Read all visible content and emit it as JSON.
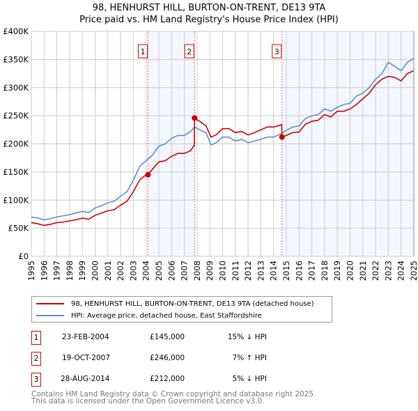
{
  "chart_data": {
    "type": "line",
    "title": "98, HENHURST HILL, BURTON-ON-TRENT, DE13 9TA",
    "subtitle": "Price paid vs. HM Land Registry's House Price Index (HPI)",
    "xlim": [
      1995,
      2025
    ],
    "ylim": [
      0,
      400000
    ],
    "x_ticks": [
      "1995",
      "1996",
      "1997",
      "1998",
      "1999",
      "2000",
      "2001",
      "2002",
      "2003",
      "2004",
      "2005",
      "2006",
      "2007",
      "2008",
      "2009",
      "2010",
      "2011",
      "2012",
      "2013",
      "2014",
      "2015",
      "2016",
      "2017",
      "2018",
      "2019",
      "2020",
      "2021",
      "2022",
      "2023",
      "2024",
      "2025"
    ],
    "y_ticks": [
      {
        "v": 0,
        "label": "£0"
      },
      {
        "v": 50000,
        "label": "£50K"
      },
      {
        "v": 100000,
        "label": "£100K"
      },
      {
        "v": 150000,
        "label": "£150K"
      },
      {
        "v": 200000,
        "label": "£200K"
      },
      {
        "v": 250000,
        "label": "£250K"
      },
      {
        "v": 300000,
        "label": "£300K"
      },
      {
        "v": 350000,
        "label": "£350K"
      },
      {
        "v": 400000,
        "label": "£400K"
      }
    ],
    "grid": true,
    "shaded_ranges": [
      [
        2004.15,
        2007.8
      ],
      [
        2014.66,
        2025
      ]
    ],
    "series": [
      {
        "name": "98, HENHURST HILL, BURTON-ON-TRENT, DE13 9TA (detached house)",
        "color": "#cc0000",
        "points": [
          [
            1995,
            60
          ],
          [
            1995.5,
            58
          ],
          [
            1996,
            55
          ],
          [
            1996.5,
            57
          ],
          [
            1997,
            60
          ],
          [
            1997.5,
            61
          ],
          [
            1998,
            63
          ],
          [
            1998.5,
            65
          ],
          [
            1999,
            68
          ],
          [
            1999.5,
            66
          ],
          [
            2000,
            73
          ],
          [
            2000.5,
            77
          ],
          [
            2001,
            81
          ],
          [
            2001.5,
            83
          ],
          [
            2002,
            91
          ],
          [
            2002.5,
            98
          ],
          [
            2003,
            115
          ],
          [
            2003.5,
            136
          ],
          [
            2004,
            145
          ],
          [
            2004.15,
            145
          ],
          [
            2004.5,
            155
          ],
          [
            2005,
            168
          ],
          [
            2005.5,
            170
          ],
          [
            2006,
            178
          ],
          [
            2006.5,
            183
          ],
          [
            2007,
            183
          ],
          [
            2007.5,
            188
          ],
          [
            2007.79,
            198
          ],
          [
            2007.8,
            246
          ],
          [
            2008.2,
            240
          ],
          [
            2008.7,
            232
          ],
          [
            2009.1,
            212
          ],
          [
            2009.5,
            216
          ],
          [
            2010,
            227
          ],
          [
            2010.5,
            227
          ],
          [
            2011,
            220
          ],
          [
            2011.5,
            222
          ],
          [
            2012,
            216
          ],
          [
            2012.5,
            220
          ],
          [
            2013,
            225
          ],
          [
            2013.5,
            230
          ],
          [
            2014,
            230
          ],
          [
            2014.64,
            234
          ],
          [
            2014.66,
            212
          ],
          [
            2015,
            215
          ],
          [
            2015.5,
            220
          ],
          [
            2016,
            221
          ],
          [
            2016.5,
            235
          ],
          [
            2017,
            240
          ],
          [
            2017.5,
            242
          ],
          [
            2018,
            252
          ],
          [
            2018.5,
            248
          ],
          [
            2019,
            258
          ],
          [
            2019.5,
            258
          ],
          [
            2020,
            262
          ],
          [
            2020.5,
            270
          ],
          [
            2021,
            280
          ],
          [
            2021.5,
            290
          ],
          [
            2022,
            305
          ],
          [
            2022.5,
            315
          ],
          [
            2023,
            320
          ],
          [
            2023.5,
            318
          ],
          [
            2024,
            312
          ],
          [
            2024.5,
            325
          ],
          [
            2025,
            330
          ]
        ]
      },
      {
        "name": "HPI: Average price, detached house, East Staffordshire",
        "color": "#5b8fd1",
        "points": [
          [
            1995,
            70
          ],
          [
            1995.5,
            68
          ],
          [
            1996,
            65
          ],
          [
            1996.5,
            67
          ],
          [
            1997,
            70
          ],
          [
            1997.5,
            72
          ],
          [
            1998,
            74
          ],
          [
            1998.5,
            77
          ],
          [
            1999,
            80
          ],
          [
            1999.5,
            78
          ],
          [
            2000,
            86
          ],
          [
            2000.5,
            90
          ],
          [
            2001,
            95
          ],
          [
            2001.5,
            98
          ],
          [
            2002,
            107
          ],
          [
            2002.5,
            115
          ],
          [
            2003,
            135
          ],
          [
            2003.5,
            160
          ],
          [
            2004,
            170
          ],
          [
            2004.5,
            180
          ],
          [
            2005,
            196
          ],
          [
            2005.5,
            200
          ],
          [
            2006,
            210
          ],
          [
            2006.5,
            215
          ],
          [
            2007,
            215
          ],
          [
            2007.5,
            222
          ],
          [
            2007.8,
            230
          ],
          [
            2008.2,
            225
          ],
          [
            2008.7,
            220
          ],
          [
            2009.1,
            198
          ],
          [
            2009.5,
            202
          ],
          [
            2010,
            212
          ],
          [
            2010.5,
            212
          ],
          [
            2011,
            205
          ],
          [
            2011.5,
            208
          ],
          [
            2012,
            202
          ],
          [
            2012.5,
            205
          ],
          [
            2013,
            208
          ],
          [
            2013.5,
            212
          ],
          [
            2014,
            212
          ],
          [
            2014.6,
            218
          ],
          [
            2015,
            224
          ],
          [
            2015.5,
            230
          ],
          [
            2016,
            232
          ],
          [
            2016.5,
            245
          ],
          [
            2017,
            250
          ],
          [
            2017.5,
            252
          ],
          [
            2018,
            262
          ],
          [
            2018.5,
            258
          ],
          [
            2019,
            265
          ],
          [
            2019.5,
            270
          ],
          [
            2020,
            272
          ],
          [
            2020.5,
            285
          ],
          [
            2021,
            290
          ],
          [
            2021.5,
            300
          ],
          [
            2022,
            315
          ],
          [
            2022.5,
            325
          ],
          [
            2023,
            345
          ],
          [
            2023.5,
            338
          ],
          [
            2024,
            330
          ],
          [
            2024.5,
            345
          ],
          [
            2025,
            352
          ]
        ]
      }
    ],
    "sales": [
      {
        "id": "1",
        "x": 2004.15,
        "value": 145000,
        "date": "23-FEB-2004",
        "price": "£145,000",
        "hpi": "15% ↓ HPI"
      },
      {
        "id": "2",
        "x": 2007.8,
        "value": 246000,
        "date": "19-OCT-2007",
        "price": "£246,000",
        "hpi": "7% ↑ HPI"
      },
      {
        "id": "3",
        "x": 2014.66,
        "value": 212000,
        "date": "28-AUG-2014",
        "price": "£212,000",
        "hpi": "5% ↓ HPI"
      }
    ]
  },
  "footer": {
    "line1": "Contains HM Land Registry data © Crown copyright and database right 2025.",
    "line2": "This data is licensed under the Open Government Licence v3.0."
  }
}
